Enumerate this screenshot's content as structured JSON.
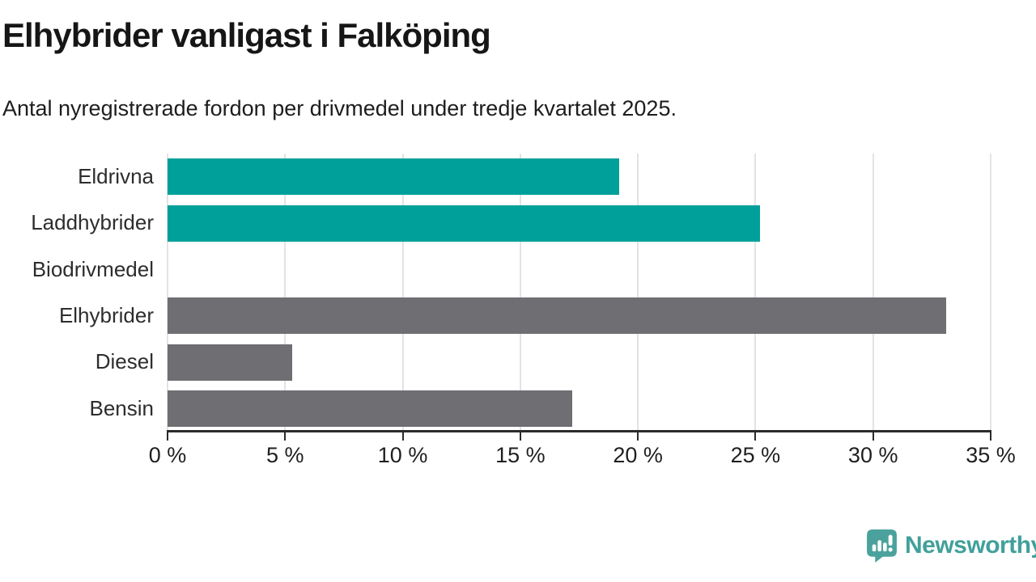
{
  "header": {
    "title": "Elhybrider vanligast i Falköping",
    "subtitle": "Antal nyregistrerade fordon per drivmedel under tredje kvartalet 2025."
  },
  "chart_data": {
    "type": "bar",
    "orientation": "horizontal",
    "title": "Elhybrider vanligast i Falköping",
    "subtitle": "Antal nyregistrerade fordon per drivmedel under tredje kvartalet 2025.",
    "categories": [
      "Eldrivna",
      "Laddhybrider",
      "Biodrivmedel",
      "Elhybrider",
      "Diesel",
      "Bensin"
    ],
    "values": [
      19.2,
      25.2,
      0,
      33.1,
      5.3,
      17.2
    ],
    "unit": "%",
    "bar_colors": [
      "#00a09a",
      "#00a09a",
      "#00a09a",
      "#6e6e73",
      "#6e6e73",
      "#6e6e73"
    ],
    "xlabel": "",
    "ylabel": "",
    "xlim": [
      0,
      35
    ],
    "x_ticks": [
      0,
      5,
      10,
      15,
      20,
      25,
      30,
      35
    ],
    "x_tick_labels": [
      "0 %",
      "5 %",
      "10 %",
      "15 %",
      "20 %",
      "25 %",
      "30 %",
      "35 %"
    ],
    "grid": "vertical-gridlines",
    "legend": "none"
  },
  "footer": {
    "brand": "Newsworthy",
    "brand_color": "#41a09b",
    "logo_icon": "newsworthy-speech-bubble-chart-icon"
  },
  "colors": {
    "accent_teal": "#00a09a",
    "neutral_gray": "#6e6e73",
    "axis": "#2b2b2b",
    "gridline": "#e3e3e3",
    "text": "#1d1d1d",
    "background": "#ffffff"
  }
}
